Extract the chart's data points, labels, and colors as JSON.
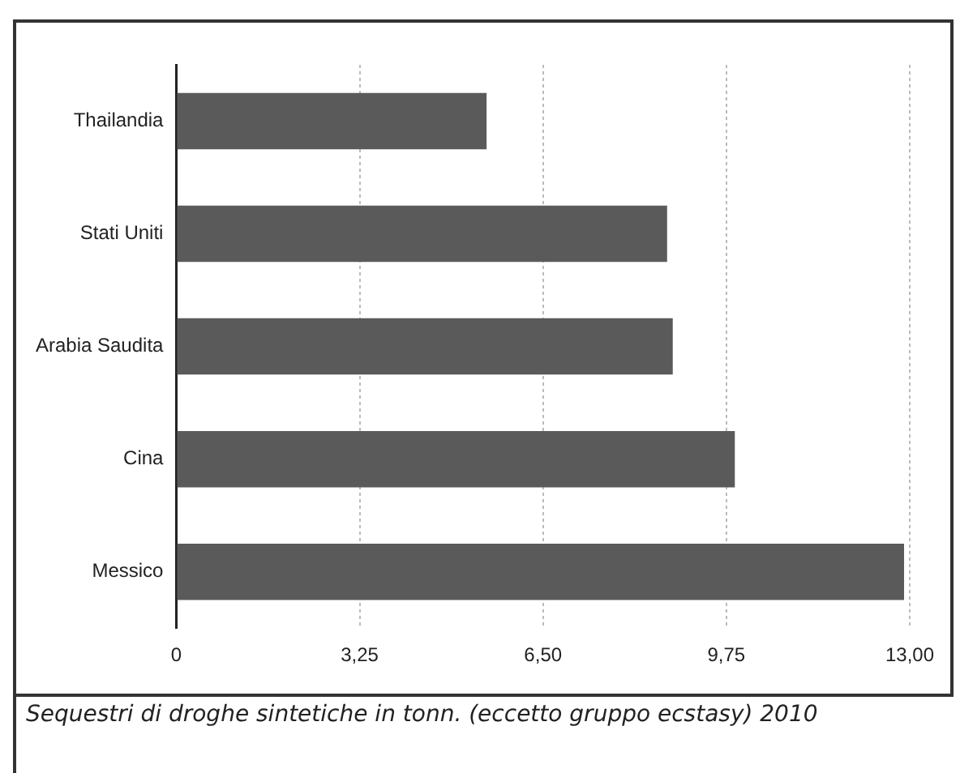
{
  "chart_data": {
    "type": "bar",
    "orientation": "horizontal",
    "categories": [
      "Thailandia",
      "Stati Uniti",
      "Arabia Saudita",
      "Cina",
      "Messico"
    ],
    "values": [
      5.5,
      8.7,
      8.8,
      9.9,
      12.9
    ],
    "color": "#5a5a5a",
    "xlim": [
      0,
      13
    ],
    "xticks": [
      0,
      {
        "value": 3.25,
        "label": "3,25"
      },
      {
        "value": 6.5,
        "label": "6,50"
      },
      {
        "value": 9.75,
        "label": "9,75"
      },
      {
        "value": 13,
        "label": "13,00"
      }
    ],
    "grid": "x",
    "legend": false,
    "annotations": [
      "Sequestri di droghe sintetiche in tonn. (eccetto gruppo ecstasy) 2010"
    ]
  }
}
